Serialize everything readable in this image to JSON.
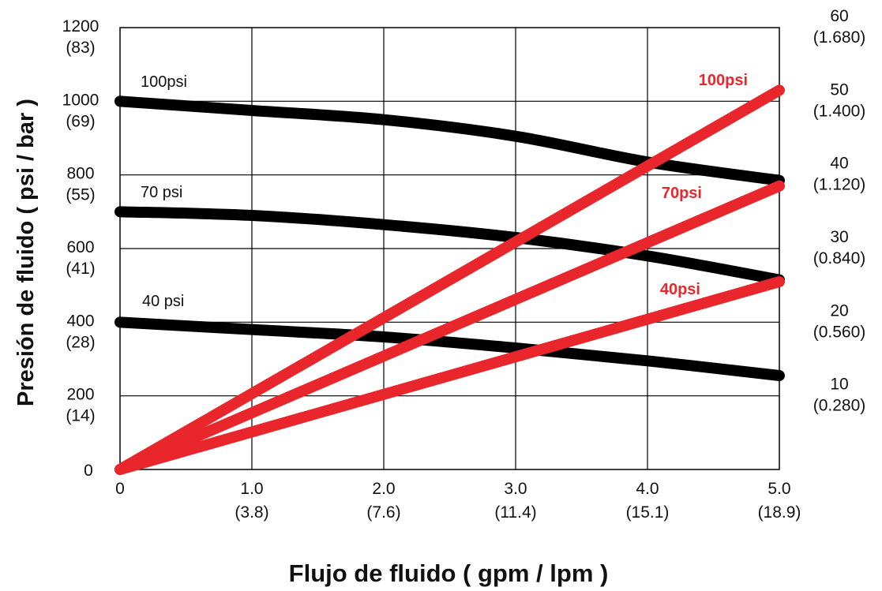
{
  "chart_data": {
    "type": "line",
    "xlabel": "Flujo de fluido ( gpm / lpm )",
    "ylabel": "Presión de fluido ( psi / bar )",
    "xlim": [
      0,
      5
    ],
    "ylim_left": [
      0,
      1200
    ],
    "ylim_right": [
      0,
      60
    ],
    "grid": true,
    "x_ticks": [
      {
        "value": 0,
        "label": "0",
        "sublabel": ""
      },
      {
        "value": 1,
        "label": "1.0",
        "sublabel": "(3.8)"
      },
      {
        "value": 2,
        "label": "2.0",
        "sublabel": "(7.6)"
      },
      {
        "value": 3,
        "label": "3.0",
        "sublabel": "(11.4)"
      },
      {
        "value": 4,
        "label": "4.0",
        "sublabel": "(15.1)"
      },
      {
        "value": 5,
        "label": "5.0",
        "sublabel": "(18.9)"
      }
    ],
    "y_left_ticks": [
      {
        "value": 0,
        "label": "0",
        "sublabel": ""
      },
      {
        "value": 200,
        "label": "200",
        "sublabel": "(14)"
      },
      {
        "value": 400,
        "label": "400",
        "sublabel": "(28)"
      },
      {
        "value": 600,
        "label": "600",
        "sublabel": "(41)"
      },
      {
        "value": 800,
        "label": "800",
        "sublabel": "(55)"
      },
      {
        "value": 1000,
        "label": "1000",
        "sublabel": "(69)"
      },
      {
        "value": 1200,
        "label": "1200",
        "sublabel": "(83)"
      }
    ],
    "y_right_ticks": [
      {
        "value": 10,
        "label": "10",
        "sublabel": "(0.280)"
      },
      {
        "value": 20,
        "label": "20",
        "sublabel": "(0.560)"
      },
      {
        "value": 30,
        "label": "30",
        "sublabel": "(0.840)"
      },
      {
        "value": 40,
        "label": "40",
        "sublabel": "(1.120)"
      },
      {
        "value": 50,
        "label": "50",
        "sublabel": "(1.400)"
      },
      {
        "value": 60,
        "label": "60",
        "sublabel": "(1.680)"
      }
    ],
    "series": [
      {
        "name": "100psi",
        "axis": "left",
        "color": "#000000",
        "x": [
          0,
          1,
          2,
          3,
          4,
          5
        ],
        "values": [
          1000,
          975,
          950,
          905,
          835,
          785
        ]
      },
      {
        "name": "70 psi",
        "axis": "left",
        "color": "#000000",
        "x": [
          0,
          1,
          2,
          3,
          4,
          5
        ],
        "values": [
          700,
          690,
          665,
          630,
          580,
          515
        ]
      },
      {
        "name": "40 psi",
        "axis": "left",
        "color": "#000000",
        "x": [
          0,
          1,
          2,
          3,
          4,
          5
        ],
        "values": [
          400,
          380,
          360,
          330,
          295,
          255
        ]
      },
      {
        "name": "100psi",
        "axis": "right",
        "color": "#e8262b",
        "x": [
          0,
          5
        ],
        "values": [
          0,
          51.5
        ]
      },
      {
        "name": "70psi",
        "axis": "right",
        "color": "#e8262b",
        "x": [
          0,
          5
        ],
        "values": [
          0,
          38.5
        ]
      },
      {
        "name": "40psi",
        "axis": "right",
        "color": "#e8262b",
        "x": [
          0,
          5
        ],
        "values": [
          0,
          25.5
        ]
      }
    ]
  }
}
